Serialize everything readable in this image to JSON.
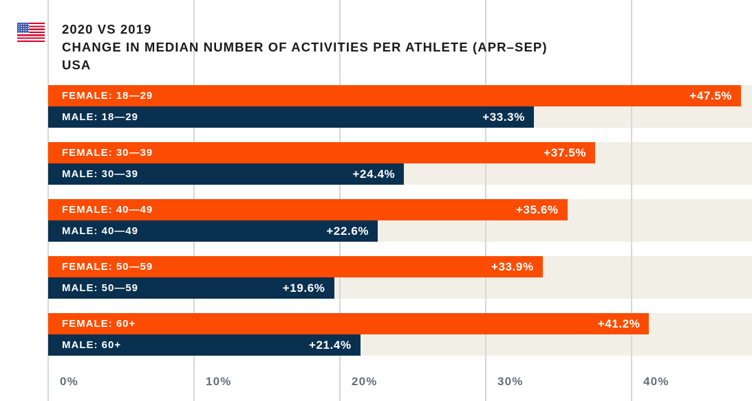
{
  "header": {
    "flag_icon": "us-flag-icon",
    "title_line1": "2020 VS 2019",
    "title_line2": "CHANGE IN MEDIAN NUMBER OF ACTIVITIES PER ATHLETE (APR–SEP)",
    "title_line3": "USA"
  },
  "colors": {
    "female_bar": "#FC4C02",
    "male_bar": "#09304F",
    "row_track": "#F1EFE6",
    "gridline": "#D3D9D6",
    "axis_label": "#686D78",
    "title_text": "#1A1A1A",
    "bar_text": "#FFFFFF",
    "flag_red": "#D80027",
    "flag_blue": "#3D58A7"
  },
  "chart_data": {
    "type": "bar",
    "orientation": "horizontal",
    "title": "2020 VS 2019 CHANGE IN MEDIAN NUMBER OF ACTIVITIES PER ATHLETE (APR–SEP) USA",
    "categories": [
      "18—29",
      "30—39",
      "40—49",
      "50—59",
      "60+"
    ],
    "series": [
      {
        "name": "FEMALE",
        "color": "#FC4C02",
        "values": [
          47.5,
          37.5,
          35.6,
          33.9,
          41.2
        ],
        "bar_labels": [
          "FEMALE: 18—29",
          "FEMALE: 30—39",
          "FEMALE: 40—49",
          "FEMALE: 50—59",
          "FEMALE: 60+"
        ],
        "value_labels": [
          "+47.5%",
          "+37.5%",
          "+35.6%",
          "+33.9%",
          "+41.2%"
        ]
      },
      {
        "name": "MALE",
        "color": "#09304F",
        "values": [
          33.3,
          24.4,
          22.6,
          19.6,
          21.4
        ],
        "bar_labels": [
          "MALE: 18—29",
          "MALE: 30—39",
          "MALE: 40—49",
          "MALE: 50—59",
          "MALE: 60+"
        ],
        "value_labels": [
          "+33.3%",
          "+24.4%",
          "+22.6%",
          "+19.6%",
          "+21.4%"
        ]
      }
    ],
    "x_ticks": [
      {
        "label": "0%",
        "value": 0
      },
      {
        "label": "10%",
        "value": 10
      },
      {
        "label": "20%",
        "value": 20
      },
      {
        "label": "30%",
        "value": 30
      },
      {
        "label": "40%",
        "value": 40
      }
    ],
    "xlim": [
      0,
      48.2
    ],
    "grid": "vertical",
    "legend": "labels-inside-bars",
    "value_labels_position": "inside-end"
  }
}
